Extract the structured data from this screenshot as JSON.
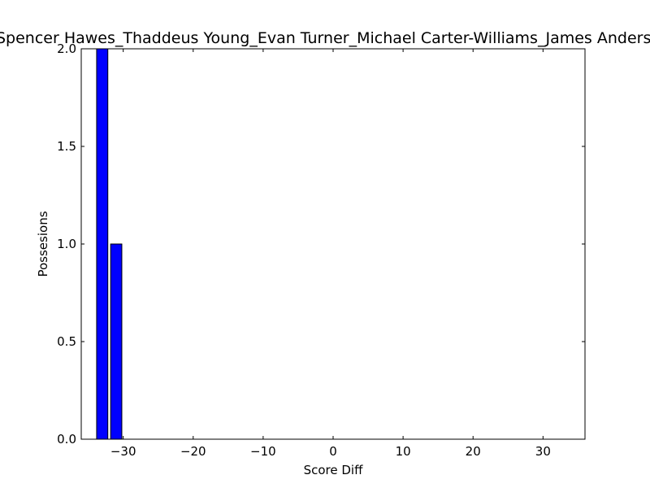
{
  "chart_data": {
    "type": "bar",
    "title": "Spencer Hawes_Thaddeus Young_Evan Turner_Michael Carter-Williams_James Anderson",
    "xlabel": "Score Diff",
    "ylabel": "Possesions",
    "xlim": [
      -36,
      36
    ],
    "ylim": [
      0,
      2.0
    ],
    "x_ticks": [
      -30,
      -20,
      -10,
      0,
      10,
      20,
      30
    ],
    "x_tick_labels": [
      "−30",
      "−20",
      "−10",
      "0",
      "10",
      "20",
      "30"
    ],
    "y_ticks": [
      0.0,
      0.5,
      1.0,
      1.5,
      2.0
    ],
    "y_tick_labels": [
      "0.0",
      "0.5",
      "1.0",
      "1.5",
      "2.0"
    ],
    "bar_width": 1.6,
    "x": [
      -33,
      -31,
      -29,
      -27,
      -25,
      -23,
      -21,
      -19,
      -17,
      -15,
      -13,
      -11,
      -9,
      -7,
      -5,
      -3,
      -1,
      1,
      3,
      5,
      7,
      9,
      11,
      13,
      15,
      17,
      19,
      21,
      23,
      25,
      27,
      29,
      31,
      33
    ],
    "values": [
      2,
      1,
      0,
      0,
      0,
      0,
      0,
      0,
      0,
      0,
      0,
      0,
      0,
      0,
      0,
      0,
      0,
      0,
      0,
      0,
      0,
      0,
      0,
      0,
      0,
      0,
      0,
      0,
      0,
      0,
      0,
      0,
      0,
      0
    ],
    "bar_color": "#0000ff",
    "grid": false,
    "legend": "none"
  }
}
